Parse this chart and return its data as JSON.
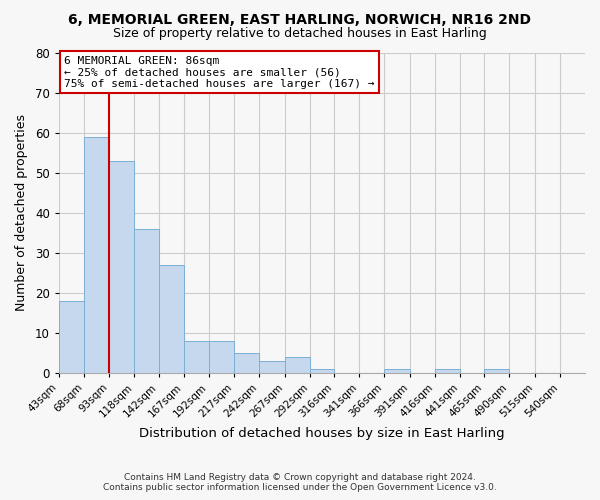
{
  "title": "6, MEMORIAL GREEN, EAST HARLING, NORWICH, NR16 2ND",
  "subtitle": "Size of property relative to detached houses in East Harling",
  "xlabel": "Distribution of detached houses by size in East Harling",
  "ylabel": "Number of detached properties",
  "bar_heights": [
    18,
    59,
    53,
    36,
    27,
    8,
    8,
    5,
    3,
    4,
    1,
    0,
    0,
    1,
    0,
    1,
    0,
    1,
    0,
    0
  ],
  "bin_labels": [
    "43sqm",
    "68sqm",
    "93sqm",
    "118sqm",
    "142sqm",
    "167sqm",
    "192sqm",
    "217sqm",
    "242sqm",
    "267sqm",
    "292sqm",
    "316sqm",
    "341sqm",
    "366sqm",
    "391sqm",
    "416sqm",
    "441sqm",
    "465sqm",
    "490sqm",
    "515sqm",
    "540sqm"
  ],
  "bar_color": "#c5d8ed",
  "bar_edge_color": "#7aafd4",
  "grid_color": "#cccccc",
  "background_color": "#f7f7f7",
  "vline_color": "#cc0000",
  "annotation_text": "6 MEMORIAL GREEN: 86sqm\n← 25% of detached houses are smaller (56)\n75% of semi-detached houses are larger (167) →",
  "annotation_box_color": "#ffffff",
  "annotation_box_edge_color": "#cc0000",
  "ylim": [
    0,
    80
  ],
  "yticks": [
    0,
    10,
    20,
    30,
    40,
    50,
    60,
    70,
    80
  ],
  "footer_line1": "Contains HM Land Registry data © Crown copyright and database right 2024.",
  "footer_line2": "Contains public sector information licensed under the Open Government Licence v3.0.",
  "bin_edges": [
    43,
    68,
    93,
    118,
    142,
    167,
    192,
    217,
    242,
    267,
    292,
    316,
    341,
    366,
    391,
    416,
    441,
    465,
    490,
    515,
    540
  ]
}
